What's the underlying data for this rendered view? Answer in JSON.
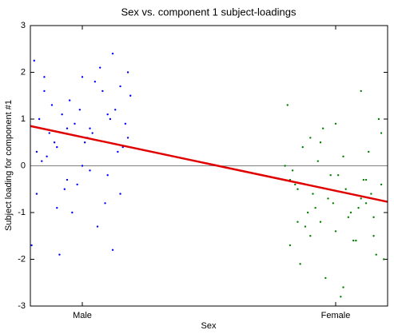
{
  "chart_data": {
    "type": "scatter",
    "title": "Sex vs. component 1 subject-loadings",
    "xlabel": "Sex",
    "ylabel": "Subject loading for component #1",
    "xlim": [
      0.795,
      2.205
    ],
    "xticks": [
      {
        "value": 1,
        "label": "Male"
      },
      {
        "value": 2,
        "label": "Female"
      }
    ],
    "ylim": [
      -3,
      3
    ],
    "yticks": [
      -3,
      -2,
      -1,
      0,
      1,
      2,
      3
    ],
    "hline": 0,
    "hline_color": "#808080",
    "series": [
      {
        "style": "dots",
        "color": "#0000ff",
        "x": [
          0.81,
          0.85,
          0.9,
          0.94,
          0.99,
          1.03,
          1.08,
          1.12,
          1.17,
          1.19,
          0.82,
          0.87,
          0.92,
          0.96,
          1.01,
          1.05,
          1.1,
          1.14,
          1.18,
          0.84,
          0.88,
          0.93,
          0.97,
          1.02,
          1.06,
          1.11,
          1.15,
          0.8,
          0.86,
          0.91,
          0.95,
          1.0,
          1.04,
          1.09,
          1.13,
          1.16,
          0.83,
          0.89,
          0.98,
          1.07,
          1.12,
          1.18,
          0.85,
          0.94,
          1.03,
          1.1,
          0.9,
          1.0,
          1.15,
          0.82
        ],
        "values": [
          2.25,
          1.9,
          0.4,
          -0.3,
          1.2,
          0.8,
          1.6,
          2.4,
          0.9,
          1.5,
          -0.6,
          0.7,
          1.1,
          -1.0,
          0.5,
          1.8,
          -0.2,
          0.3,
          2.0,
          0.1,
          1.3,
          -0.5,
          0.9,
          0.6,
          -1.3,
          1.0,
          1.7,
          -1.7,
          0.2,
          -1.9,
          1.4,
          0.0,
          0.7,
          -0.8,
          1.2,
          0.4,
          1.0,
          0.5,
          -0.4,
          2.1,
          -1.8,
          0.6,
          1.6,
          0.8,
          -0.1,
          1.1,
          -0.9,
          1.9,
          -0.6,
          0.3
        ]
      },
      {
        "style": "dots",
        "color": "#008000",
        "x": [
          1.81,
          1.85,
          1.9,
          1.94,
          1.99,
          2.03,
          2.08,
          2.12,
          2.17,
          2.19,
          1.82,
          1.87,
          1.92,
          1.96,
          2.01,
          2.05,
          2.1,
          2.14,
          2.18,
          1.84,
          1.88,
          1.93,
          1.97,
          2.02,
          2.06,
          2.11,
          2.15,
          1.8,
          1.86,
          1.91,
          1.95,
          2.0,
          2.04,
          2.09,
          2.13,
          2.16,
          1.83,
          1.89,
          1.98,
          2.07,
          2.12,
          2.18,
          1.85,
          1.94,
          2.03,
          2.1,
          1.9,
          2.0,
          2.15,
          1.82
        ],
        "values": [
          1.3,
          -0.5,
          0.6,
          -1.2,
          -0.8,
          0.2,
          -1.6,
          -0.3,
          1.0,
          -2.0,
          -1.7,
          0.4,
          -0.9,
          -2.4,
          -0.2,
          -1.1,
          1.6,
          -0.6,
          0.7,
          -0.4,
          -1.3,
          0.1,
          -0.7,
          -2.8,
          -1.0,
          -0.3,
          -1.5,
          0.0,
          -2.1,
          -0.6,
          0.8,
          -1.4,
          -0.5,
          -0.9,
          0.3,
          -1.9,
          -0.1,
          -1.0,
          -0.2,
          -1.6,
          -0.8,
          -0.4,
          -1.2,
          0.5,
          -2.6,
          -0.7,
          -1.5,
          0.9,
          -1.1,
          -0.3
        ]
      },
      {
        "style": "line",
        "color": "#e00000",
        "x": [
          0.795,
          2.205
        ],
        "values": [
          0.85,
          -0.77
        ]
      }
    ]
  }
}
